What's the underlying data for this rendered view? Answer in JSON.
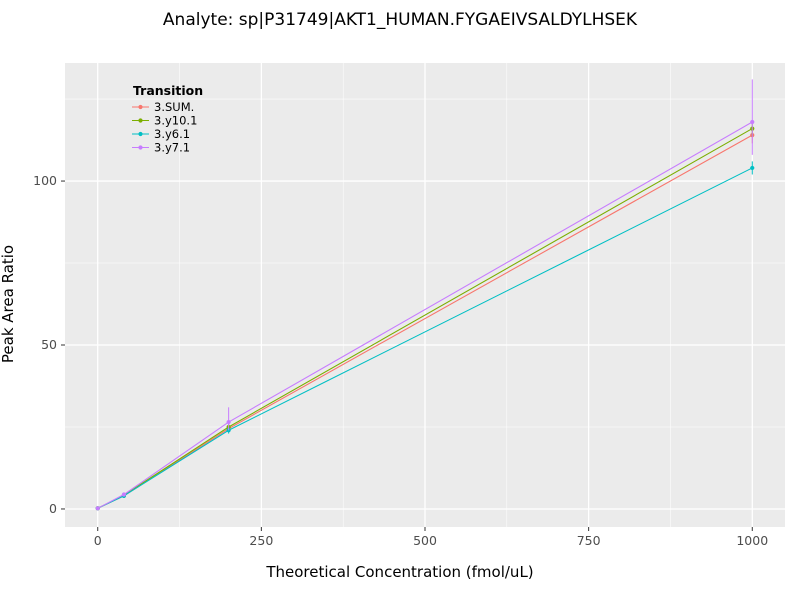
{
  "chart_data": {
    "type": "line",
    "title": "Analyte: sp|P31749|AKT1_HUMAN.FYGAEIVSALDYLHSEK",
    "xlabel": "Theoretical Concentration (fmol/uL)",
    "ylabel": "Peak Area Ratio",
    "x": [
      0,
      40,
      200,
      1000
    ],
    "series": [
      {
        "name": "3.SUM.",
        "color": "#F8766D",
        "values": [
          0.2,
          4.0,
          24.5,
          114
        ],
        "err_minus": [
          0.1,
          0.3,
          1.0,
          2.5
        ],
        "err_plus": [
          0.1,
          0.3,
          1.0,
          2.5
        ]
      },
      {
        "name": "3.y10.1",
        "color": "#7CAE00",
        "values": [
          0.2,
          4.2,
          25.0,
          116
        ],
        "err_minus": [
          0.1,
          0.3,
          1.0,
          2.5
        ],
        "err_plus": [
          0.1,
          0.3,
          1.0,
          2.5
        ]
      },
      {
        "name": "3.y6.1",
        "color": "#00BFC4",
        "values": [
          0.2,
          4.0,
          24.0,
          104
        ],
        "err_minus": [
          0.1,
          0.3,
          1.0,
          2.0
        ],
        "err_plus": [
          0.1,
          0.3,
          1.0,
          2.0
        ]
      },
      {
        "name": "3.y7.1",
        "color": "#C77CFF",
        "values": [
          0.2,
          4.4,
          26.5,
          118
        ],
        "err_minus": [
          0.1,
          0.4,
          2.5,
          10.0
        ],
        "err_plus": [
          0.1,
          0.4,
          4.5,
          13.0
        ]
      }
    ],
    "legend": {
      "title": "Transition",
      "position": "inside-top-left"
    },
    "x_ticks": [
      0,
      250,
      500,
      750,
      1000
    ],
    "x_minor": [
      125,
      375,
      625,
      875
    ],
    "y_ticks": [
      0,
      50,
      100
    ],
    "y_minor": [
      25,
      75,
      125
    ],
    "xlim": [
      -50,
      1050
    ],
    "ylim": [
      -5.5,
      136
    ],
    "style": {
      "panel_bg": "#EBEBEB",
      "grid_major": "#FFFFFF",
      "grid_minor": "#F5F5F5",
      "tick_color": "#333333",
      "tick_label_color": "#4D4D4D",
      "text_color": "#000000"
    }
  }
}
